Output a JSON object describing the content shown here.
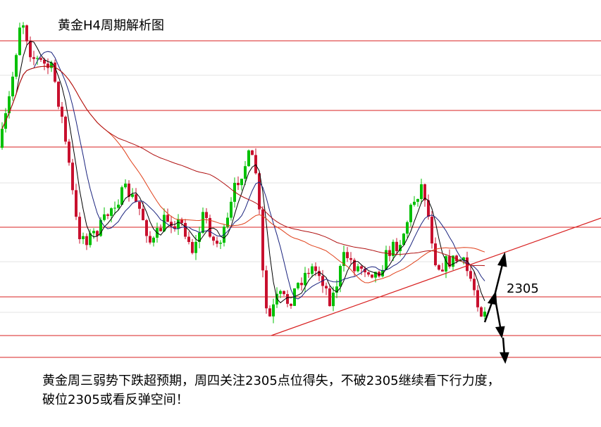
{
  "header": {
    "title": "黄金H4周期解析图"
  },
  "annotation": {
    "level": "2305"
  },
  "footer": {
    "lines": [
      "黄金周三弱势下跌超预期，周四关注2305点位得失，不破2305继续看下行力度，",
      "破位2305或看反弹空间！"
    ]
  }
}
